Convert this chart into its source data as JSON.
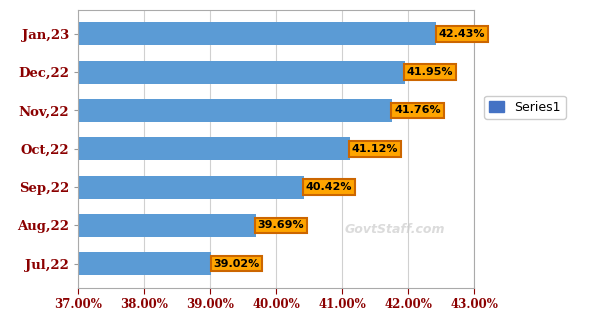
{
  "categories": [
    "Jan,23",
    "Dec,22",
    "Nov,22",
    "Oct,22",
    "Sep,22",
    "Aug,22",
    "Jul,22"
  ],
  "values": [
    42.43,
    41.95,
    41.76,
    41.12,
    40.42,
    39.69,
    39.02
  ],
  "labels": [
    "42.43%",
    "41.95%",
    "41.76%",
    "41.12%",
    "40.42%",
    "39.69%",
    "39.02%"
  ],
  "bar_color": "#5B9BD5",
  "label_bg_color": "#FFA500",
  "label_border_color": "#CC6600",
  "label_text_color": "#000000",
  "y_label_color": "#8B0000",
  "x_tick_color": "#8B0000",
  "xlim": [
    37.0,
    43.0
  ],
  "xticks": [
    37.0,
    38.0,
    39.0,
    40.0,
    41.0,
    42.0,
    43.0
  ],
  "legend_label": "Series1",
  "legend_color": "#4472C4",
  "bar_height": 0.6,
  "background_color": "#FFFFFF",
  "plot_bg_color": "#FFFFFF",
  "figure_border_color": "#888888",
  "grid_color": "#D0D0D0",
  "watermark_text": "GovtStaff.com",
  "watermark_color": "#CCCCCC"
}
